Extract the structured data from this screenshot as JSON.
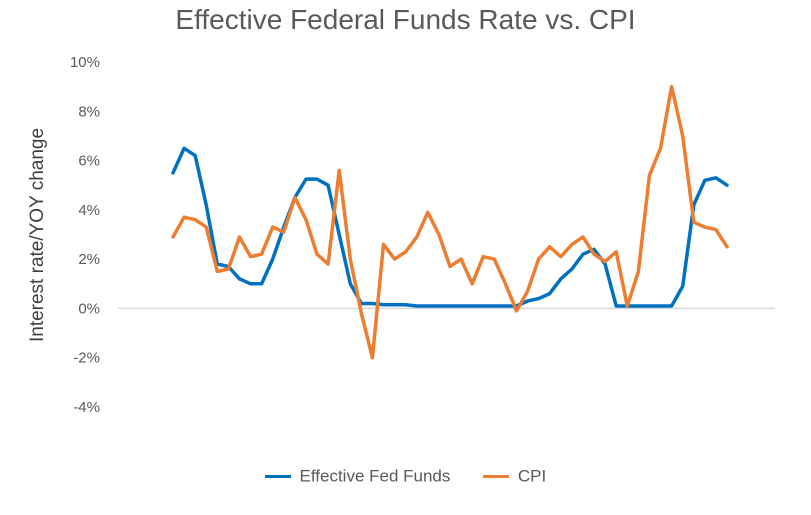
{
  "chart_data": {
    "type": "line",
    "title": "Effective Federal Funds Rate vs. CPI",
    "ylabel": "Interest rate/YOY change",
    "xlabel": "",
    "ylim": [
      -4,
      10
    ],
    "yticks": [
      -4,
      -2,
      0,
      2,
      4,
      6,
      8,
      10
    ],
    "ytick_labels": [
      "-4%",
      "-2%",
      "0%",
      "2%",
      "4%",
      "6%",
      "8%",
      "10%"
    ],
    "x": [
      0,
      2,
      4,
      6,
      8,
      10,
      12,
      14,
      16,
      18,
      20,
      22,
      24,
      26,
      28,
      30,
      32,
      34,
      36,
      38,
      40,
      42,
      44,
      46,
      48,
      50,
      52,
      54,
      56,
      58,
      60,
      62,
      64,
      66,
      68,
      70,
      72,
      74,
      76,
      78,
      80,
      82,
      84,
      86,
      88,
      90,
      92,
      94,
      96,
      98,
      100
    ],
    "x_labels_shown": false,
    "series": [
      {
        "name": "Effective Fed Funds",
        "color": "#0070C0",
        "values": [
          5.5,
          6.5,
          6.2,
          4.2,
          1.8,
          1.7,
          1.2,
          1.0,
          1.0,
          2.0,
          3.3,
          4.5,
          5.25,
          5.25,
          5.0,
          3.0,
          1.0,
          0.2,
          0.2,
          0.15,
          0.15,
          0.15,
          0.1,
          0.1,
          0.1,
          0.1,
          0.1,
          0.1,
          0.1,
          0.1,
          0.1,
          0.1,
          0.3,
          0.4,
          0.6,
          1.2,
          1.6,
          2.2,
          2.4,
          1.8,
          0.1,
          0.1,
          0.1,
          0.1,
          0.1,
          0.1,
          0.9,
          4.2,
          5.2,
          5.3,
          5.0
        ]
      },
      {
        "name": "CPI",
        "color": "#ED7D31",
        "values": [
          2.9,
          3.7,
          3.6,
          3.3,
          1.5,
          1.6,
          2.9,
          2.1,
          2.2,
          3.3,
          3.1,
          4.5,
          3.6,
          2.2,
          1.8,
          5.6,
          2.0,
          -0.2,
          -2.0,
          2.6,
          2.0,
          2.3,
          2.9,
          3.9,
          3.0,
          1.7,
          2.0,
          1.0,
          2.1,
          2.0,
          1.0,
          -0.1,
          0.7,
          2.0,
          2.5,
          2.1,
          2.6,
          2.9,
          2.2,
          1.9,
          2.3,
          0.1,
          1.5,
          5.4,
          6.5,
          9.0,
          7.0,
          3.5,
          3.3,
          3.2,
          2.5
        ]
      }
    ],
    "grid": "zero-line only",
    "legend": "bottom"
  }
}
